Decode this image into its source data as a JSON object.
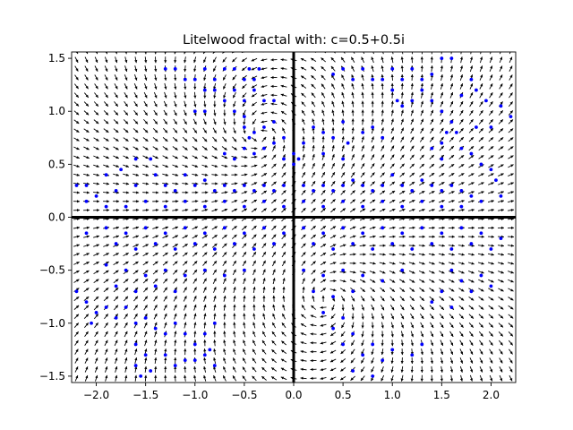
{
  "chart_data": {
    "type": "scatter",
    "title": "Litelwood fractal with: c=0.5+0.5i",
    "xlabel": "",
    "ylabel": "",
    "xlim": [
      -2.25,
      2.25
    ],
    "ylim": [
      -1.56,
      1.56
    ],
    "x_ticks": [
      -2.0,
      -1.5,
      -1.0,
      -0.5,
      0.0,
      0.5,
      1.0,
      1.5,
      2.0
    ],
    "x_tick_labels": [
      "−2.0",
      "−1.5",
      "−1.0",
      "−0.5",
      "0.0",
      "0.5",
      "1.0",
      "1.5",
      "2.0"
    ],
    "y_ticks": [
      -1.5,
      -1.0,
      -0.5,
      0.0,
      0.5,
      1.0,
      1.5
    ],
    "y_tick_labels": [
      "−1.5",
      "−1.0",
      "−0.5",
      "0.0",
      "0.5",
      "1.0",
      "1.5"
    ],
    "grid": false,
    "legend": "none",
    "colors": {
      "points": "#0000ff",
      "arrows": "#000000",
      "axes_lines": "#000000"
    },
    "axes_lines": {
      "x": 0.0,
      "y": 0.0
    },
    "points": [
      [
        -1.3,
        1.4
      ],
      [
        -1.2,
        1.4
      ],
      [
        -1.1,
        1.3
      ],
      [
        -1.0,
        1.3
      ],
      [
        -0.9,
        1.4
      ],
      [
        -0.8,
        1.3
      ],
      [
        -0.7,
        1.4
      ],
      [
        -0.6,
        1.4
      ],
      [
        -0.5,
        1.3
      ],
      [
        -0.45,
        1.4
      ],
      [
        -0.4,
        1.3
      ],
      [
        -0.35,
        1.4
      ],
      [
        -0.9,
        1.2
      ],
      [
        -0.8,
        1.2
      ],
      [
        -0.7,
        1.1
      ],
      [
        -0.6,
        1.2
      ],
      [
        -0.5,
        1.1
      ],
      [
        -0.4,
        1.2
      ],
      [
        -0.3,
        1.1
      ],
      [
        -0.2,
        1.1
      ],
      [
        -1.0,
        1.0
      ],
      [
        -0.9,
        1.0
      ],
      [
        -0.6,
        1.0
      ],
      [
        -0.5,
        0.95
      ],
      [
        -0.5,
        0.85
      ],
      [
        -0.45,
        0.75
      ],
      [
        -0.4,
        0.8
      ],
      [
        -0.3,
        0.85
      ],
      [
        -0.2,
        0.9
      ],
      [
        -0.1,
        0.75
      ],
      [
        -0.2,
        0.7
      ],
      [
        -0.3,
        0.65
      ],
      [
        -0.4,
        0.6
      ],
      [
        -0.5,
        0.65
      ],
      [
        -0.6,
        0.55
      ],
      [
        -0.7,
        0.6
      ],
      [
        -0.1,
        0.55
      ],
      [
        0.0,
        0.6
      ],
      [
        0.0,
        0.5
      ],
      [
        0.4,
        1.35
      ],
      [
        0.5,
        1.4
      ],
      [
        0.6,
        1.3
      ],
      [
        0.7,
        1.4
      ],
      [
        0.8,
        1.3
      ],
      [
        0.9,
        1.3
      ],
      [
        1.0,
        1.4
      ],
      [
        1.1,
        1.3
      ],
      [
        1.2,
        1.4
      ],
      [
        1.3,
        1.3
      ],
      [
        1.4,
        1.35
      ],
      [
        1.5,
        1.5
      ],
      [
        1.6,
        1.5
      ],
      [
        1.0,
        1.2
      ],
      [
        1.05,
        1.1
      ],
      [
        1.1,
        1.05
      ],
      [
        1.2,
        1.1
      ],
      [
        1.3,
        1.2
      ],
      [
        1.4,
        1.1
      ],
      [
        1.5,
        1.0
      ],
      [
        1.6,
        0.9
      ],
      [
        1.55,
        0.8
      ],
      [
        1.5,
        0.7
      ],
      [
        1.4,
        0.65
      ],
      [
        1.5,
        0.55
      ],
      [
        1.65,
        0.8
      ],
      [
        1.7,
        0.65
      ],
      [
        1.8,
        0.6
      ],
      [
        1.9,
        0.5
      ],
      [
        2.0,
        0.45
      ],
      [
        2.05,
        0.35
      ],
      [
        1.95,
        1.1
      ],
      [
        2.1,
        1.05
      ],
      [
        2.2,
        0.95
      ],
      [
        1.85,
        0.85
      ],
      [
        2.0,
        0.85
      ],
      [
        1.8,
        1.3
      ],
      [
        1.85,
        1.2
      ],
      [
        1.7,
        1.15
      ],
      [
        0.2,
        0.85
      ],
      [
        0.3,
        0.8
      ],
      [
        0.4,
        0.75
      ],
      [
        0.5,
        0.9
      ],
      [
        0.55,
        0.7
      ],
      [
        0.7,
        0.8
      ],
      [
        0.8,
        0.85
      ],
      [
        0.9,
        0.75
      ],
      [
        0.3,
        0.6
      ],
      [
        0.5,
        0.55
      ],
      [
        0.1,
        0.7
      ],
      [
        0.05,
        0.55
      ],
      [
        -1.45,
        0.55
      ],
      [
        -1.6,
        0.55
      ],
      [
        -1.75,
        0.45
      ],
      [
        -1.9,
        0.4
      ],
      [
        -2.1,
        0.3
      ],
      [
        -2.2,
        0.3
      ],
      [
        -2.0,
        0.2
      ],
      [
        -1.8,
        0.25
      ],
      [
        -1.6,
        0.3
      ],
      [
        -1.4,
        0.4
      ],
      [
        -1.3,
        0.3
      ],
      [
        -1.2,
        0.25
      ],
      [
        -1.1,
        0.4
      ],
      [
        -1.0,
        0.3
      ],
      [
        -0.9,
        0.35
      ],
      [
        -0.8,
        0.25
      ],
      [
        -0.7,
        0.3
      ],
      [
        -0.6,
        0.25
      ],
      [
        -0.5,
        0.3
      ],
      [
        -0.4,
        0.25
      ],
      [
        -0.3,
        0.3
      ],
      [
        -0.2,
        0.25
      ],
      [
        -0.1,
        0.3
      ],
      [
        -2.1,
        0.15
      ],
      [
        -1.9,
        0.1
      ],
      [
        -1.7,
        0.1
      ],
      [
        -1.5,
        0.15
      ],
      [
        -1.3,
        0.1
      ],
      [
        -1.1,
        0.15
      ],
      [
        -0.9,
        0.1
      ],
      [
        -0.7,
        0.15
      ],
      [
        -0.5,
        0.1
      ],
      [
        -0.3,
        0.15
      ],
      [
        -0.1,
        0.1
      ],
      [
        0.1,
        0.3
      ],
      [
        0.2,
        0.25
      ],
      [
        0.3,
        0.3
      ],
      [
        0.4,
        0.25
      ],
      [
        0.5,
        0.3
      ],
      [
        0.6,
        0.35
      ],
      [
        0.7,
        0.3
      ],
      [
        0.8,
        0.25
      ],
      [
        0.9,
        0.3
      ],
      [
        1.0,
        0.4
      ],
      [
        1.1,
        0.3
      ],
      [
        1.2,
        0.25
      ],
      [
        1.3,
        0.35
      ],
      [
        1.4,
        0.3
      ],
      [
        1.5,
        0.25
      ],
      [
        1.6,
        0.3
      ],
      [
        1.7,
        0.25
      ],
      [
        1.8,
        0.2
      ],
      [
        0.1,
        0.15
      ],
      [
        0.3,
        0.1
      ],
      [
        0.5,
        0.15
      ],
      [
        0.7,
        0.1
      ],
      [
        0.9,
        0.15
      ],
      [
        1.1,
        0.1
      ],
      [
        1.3,
        0.15
      ],
      [
        1.5,
        0.1
      ],
      [
        1.7,
        0.1
      ],
      [
        1.9,
        0.15
      ],
      [
        2.1,
        0.2
      ],
      [
        -2.1,
        -0.15
      ],
      [
        -1.9,
        -0.1
      ],
      [
        -1.7,
        -0.15
      ],
      [
        -1.5,
        -0.1
      ],
      [
        -1.3,
        -0.15
      ],
      [
        -1.1,
        -0.1
      ],
      [
        -0.9,
        -0.15
      ],
      [
        -0.7,
        -0.1
      ],
      [
        -0.5,
        -0.15
      ],
      [
        -0.3,
        -0.1
      ],
      [
        -0.1,
        -0.15
      ],
      [
        -1.8,
        -0.25
      ],
      [
        -1.6,
        -0.3
      ],
      [
        -1.4,
        -0.25
      ],
      [
        -1.2,
        -0.3
      ],
      [
        -1.0,
        -0.25
      ],
      [
        -0.8,
        -0.3
      ],
      [
        -0.6,
        -0.25
      ],
      [
        -0.4,
        -0.3
      ],
      [
        -0.2,
        -0.25
      ],
      [
        0.1,
        -0.1
      ],
      [
        0.3,
        -0.15
      ],
      [
        0.5,
        -0.1
      ],
      [
        0.7,
        -0.15
      ],
      [
        0.9,
        -0.1
      ],
      [
        1.1,
        -0.15
      ],
      [
        1.3,
        -0.1
      ],
      [
        1.5,
        -0.15
      ],
      [
        1.7,
        -0.1
      ],
      [
        1.9,
        -0.15
      ],
      [
        2.1,
        -0.2
      ],
      [
        0.2,
        -0.25
      ],
      [
        0.4,
        -0.3
      ],
      [
        0.6,
        -0.25
      ],
      [
        0.8,
        -0.3
      ],
      [
        1.0,
        -0.25
      ],
      [
        1.2,
        -0.3
      ],
      [
        1.4,
        -0.25
      ],
      [
        1.6,
        -0.3
      ],
      [
        1.8,
        -0.25
      ],
      [
        2.0,
        -0.3
      ],
      [
        -1.9,
        -0.45
      ],
      [
        -1.7,
        -0.5
      ],
      [
        -1.5,
        -0.55
      ],
      [
        -1.3,
        -0.5
      ],
      [
        -1.1,
        -0.55
      ],
      [
        -0.9,
        -0.5
      ],
      [
        -0.7,
        -0.55
      ],
      [
        -0.5,
        -0.5
      ],
      [
        -1.8,
        -0.65
      ],
      [
        -1.6,
        -0.7
      ],
      [
        -1.4,
        -0.65
      ],
      [
        -1.2,
        -0.7
      ],
      [
        -2.2,
        -0.7
      ],
      [
        -2.1,
        -0.8
      ],
      [
        -2.0,
        -0.9
      ],
      [
        -2.05,
        -1.0
      ],
      [
        -1.9,
        -0.85
      ],
      [
        -1.8,
        -0.95
      ],
      [
        -1.7,
        -0.85
      ],
      [
        -1.6,
        -1.0
      ],
      [
        -1.5,
        -0.95
      ],
      [
        -1.4,
        -1.05
      ],
      [
        -1.3,
        -1.1
      ],
      [
        -1.2,
        -1.0
      ],
      [
        -1.1,
        -1.1
      ],
      [
        -1.0,
        -1.2
      ],
      [
        -0.9,
        -1.1
      ],
      [
        -0.8,
        -1.0
      ],
      [
        -0.9,
        -1.3
      ],
      [
        -1.0,
        -1.35
      ],
      [
        -1.6,
        -1.2
      ],
      [
        -1.5,
        -1.3
      ],
      [
        -1.6,
        -1.4
      ],
      [
        -1.55,
        -1.5
      ],
      [
        -1.45,
        -1.45
      ],
      [
        -1.3,
        -1.3
      ],
      [
        -1.2,
        -1.4
      ],
      [
        -1.1,
        -1.35
      ],
      [
        -0.8,
        -1.4
      ],
      [
        -0.85,
        -1.25
      ],
      [
        0.1,
        -0.5
      ],
      [
        0.3,
        -0.55
      ],
      [
        0.5,
        -0.5
      ],
      [
        0.7,
        -0.55
      ],
      [
        0.9,
        -0.6
      ],
      [
        1.1,
        -0.5
      ],
      [
        0.2,
        -0.7
      ],
      [
        0.4,
        -0.75
      ],
      [
        0.6,
        -0.7
      ],
      [
        0.3,
        -0.9
      ],
      [
        0.5,
        -0.95
      ],
      [
        0.4,
        -1.05
      ],
      [
        0.5,
        -1.2
      ],
      [
        0.6,
        -1.1
      ],
      [
        0.7,
        -1.3
      ],
      [
        0.8,
        -1.2
      ],
      [
        0.9,
        -1.35
      ],
      [
        1.0,
        -1.25
      ],
      [
        0.6,
        -1.45
      ],
      [
        0.8,
        -1.5
      ],
      [
        1.2,
        -1.3
      ],
      [
        1.3,
        -1.2
      ],
      [
        1.6,
        -0.5
      ],
      [
        1.7,
        -0.6
      ],
      [
        1.8,
        -0.7
      ],
      [
        1.9,
        -0.55
      ],
      [
        2.0,
        -0.65
      ],
      [
        1.5,
        -0.7
      ],
      [
        1.4,
        -0.8
      ],
      [
        1.6,
        -0.85
      ]
    ]
  }
}
